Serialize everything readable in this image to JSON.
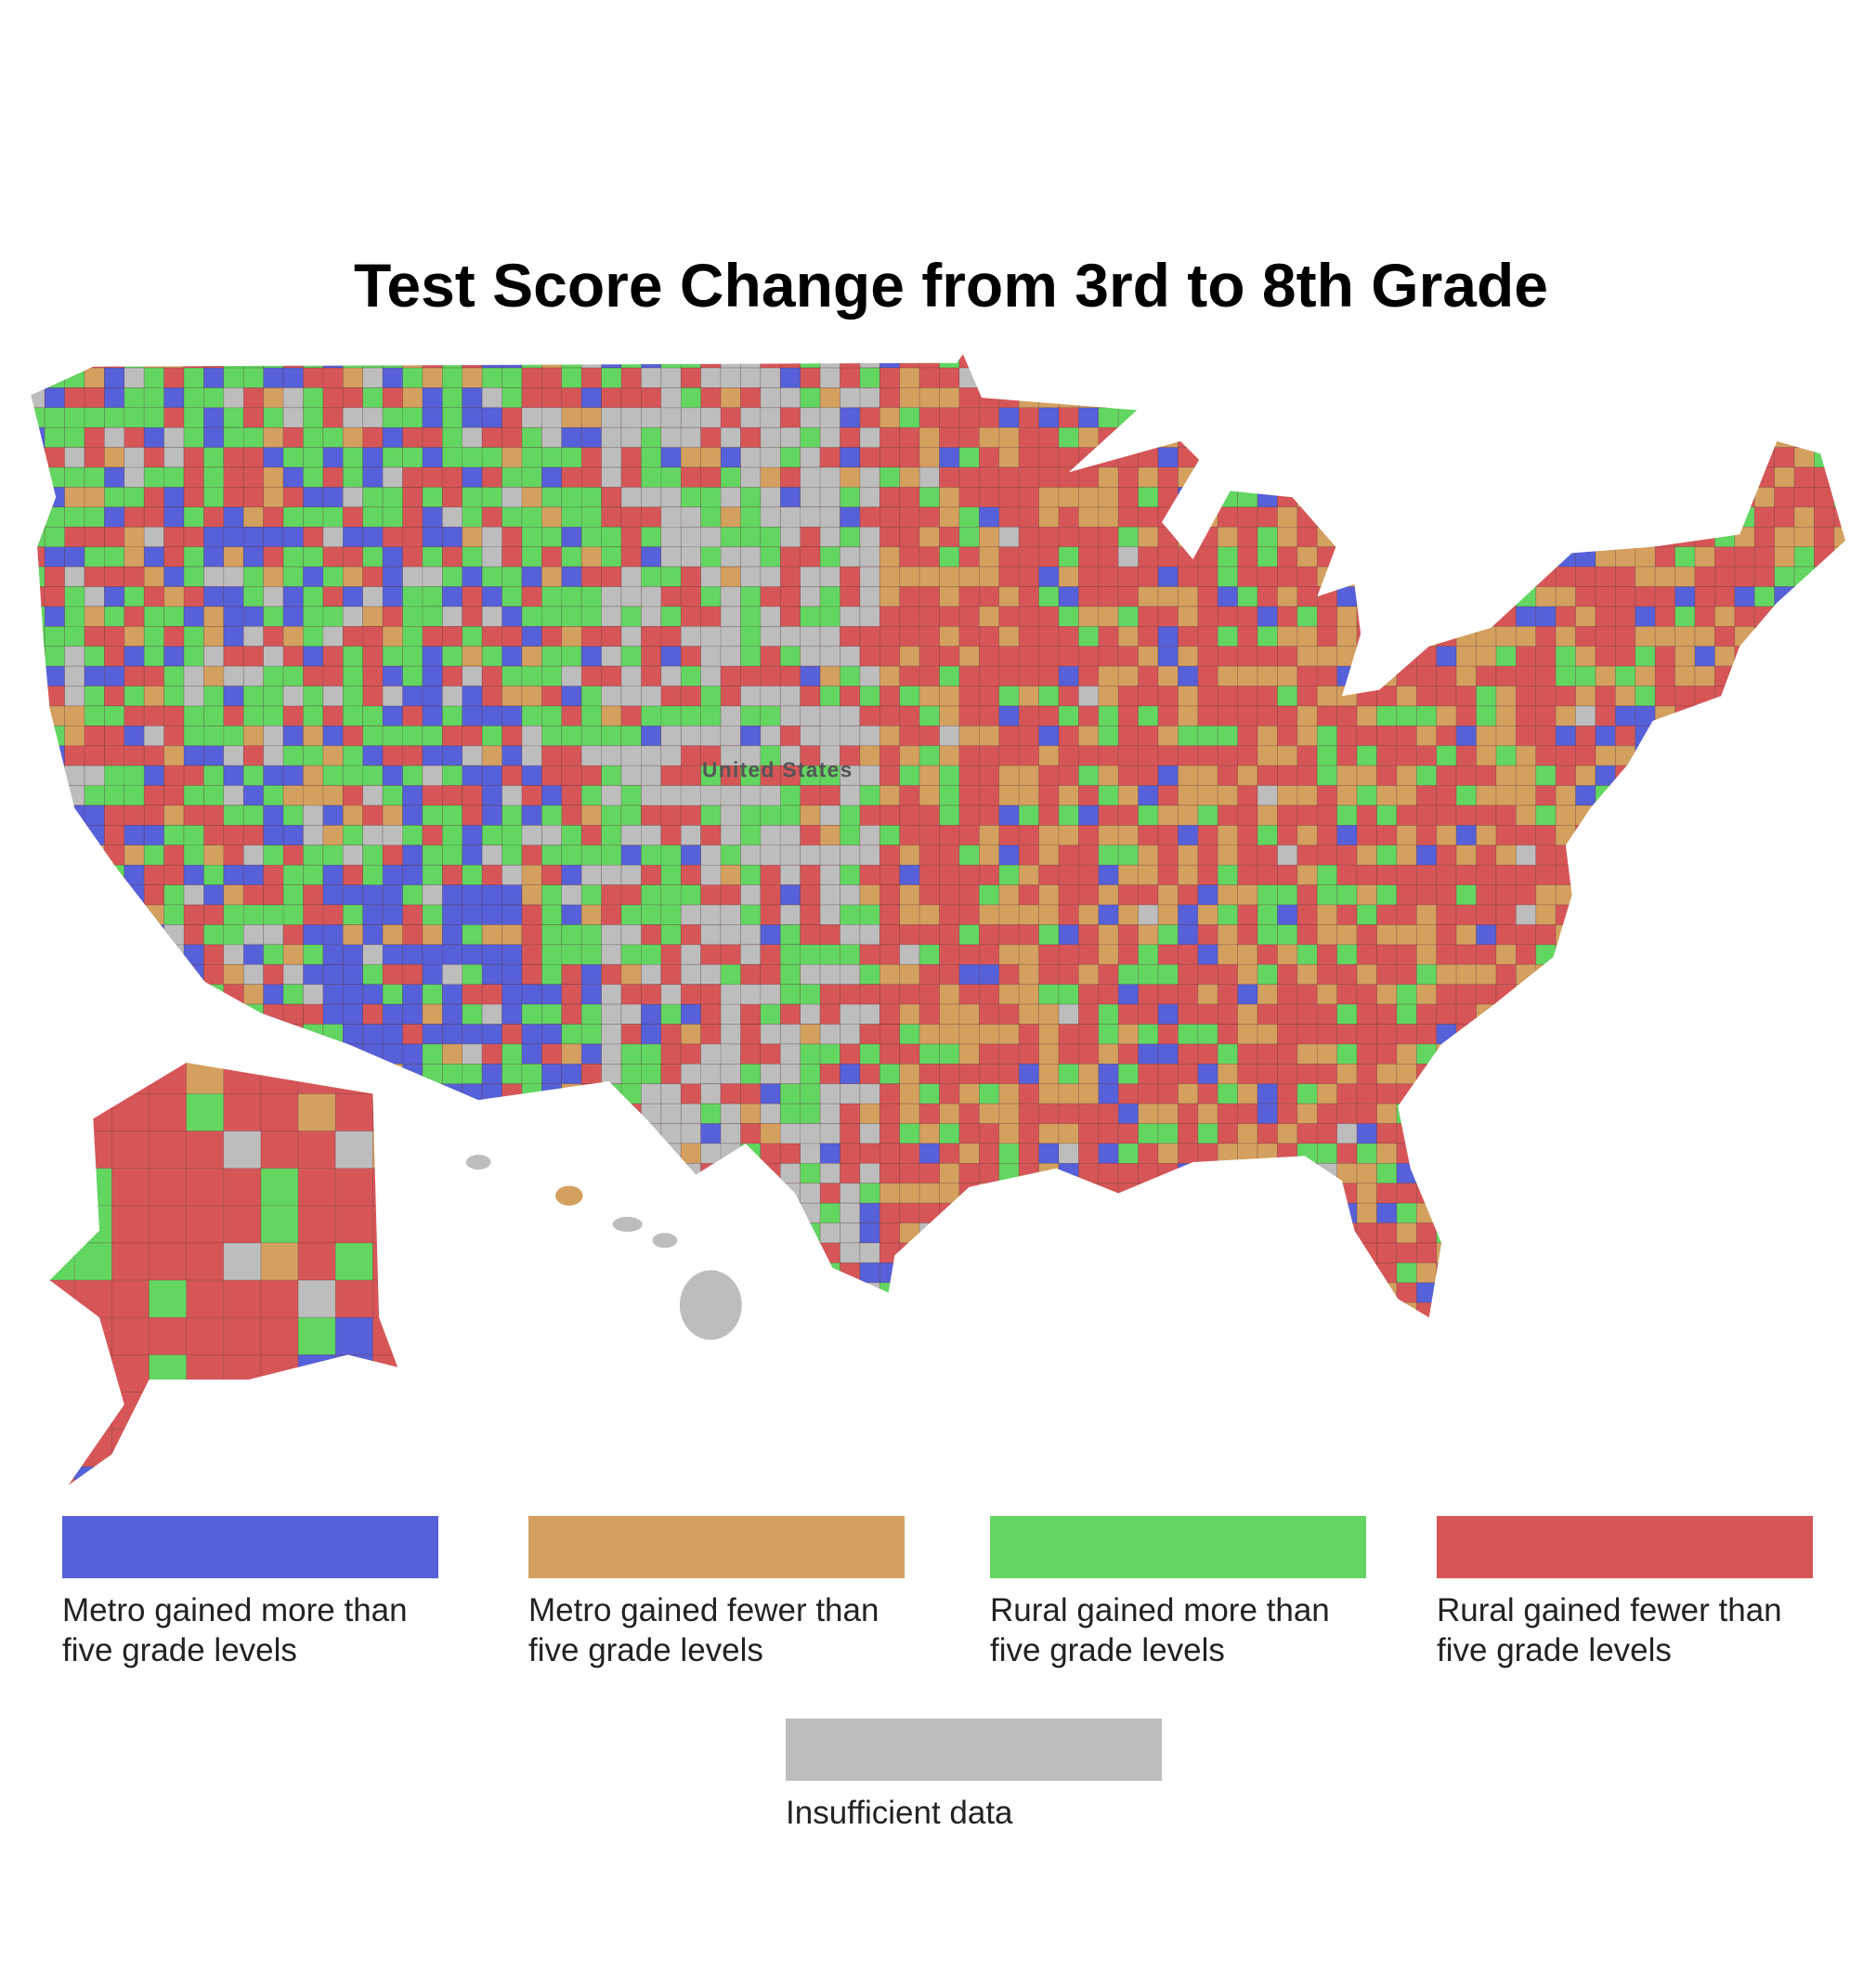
{
  "title": "Test Score Change from 3rd to 8th Grade",
  "map": {
    "label": "United States"
  },
  "legend": {
    "items": [
      {
        "label": [
          "Metro gained more than",
          "five grade levels"
        ],
        "color": "#5660d8"
      },
      {
        "label": [
          "Metro gained fewer than",
          "five grade levels"
        ],
        "color": "#d4a05f"
      },
      {
        "label": [
          "Rural gained more than",
          "five grade levels"
        ],
        "color": "#63d662"
      },
      {
        "label": [
          "Rural gained fewer than",
          "five grade levels"
        ],
        "color": "#d65658"
      },
      {
        "label": [
          "Insufficient data"
        ],
        "color": "#bdbdbd"
      }
    ]
  }
}
